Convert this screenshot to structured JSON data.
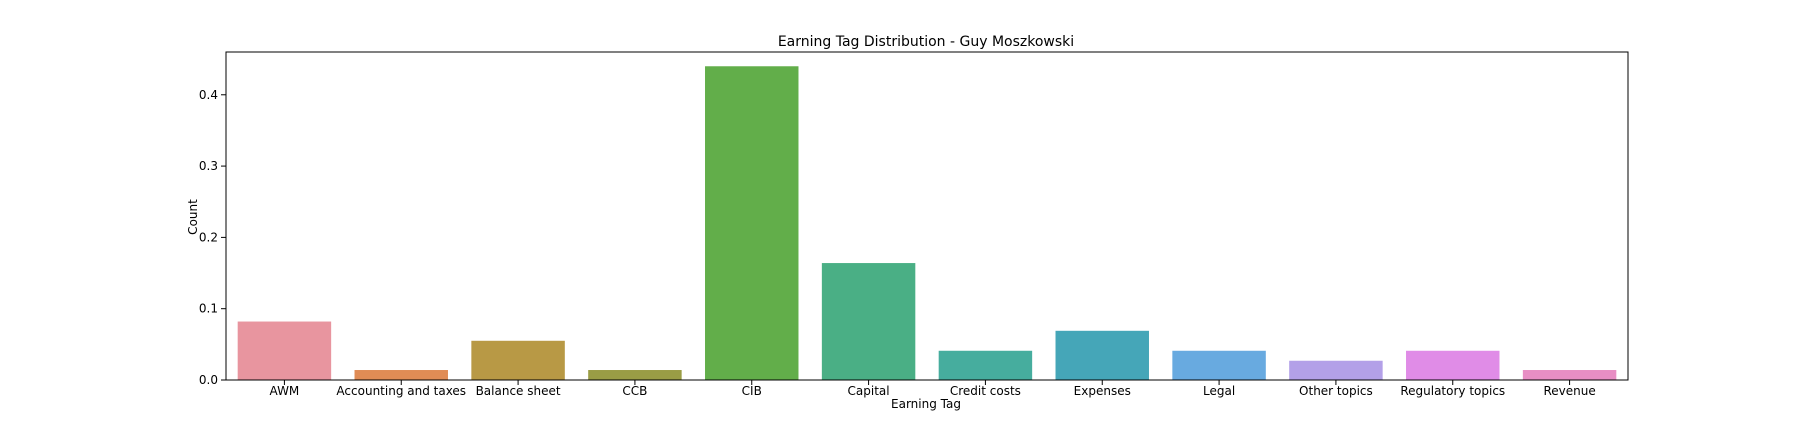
{
  "chart_data": {
    "type": "bar",
    "title": "Earning Tag Distribution - Guy Moszkowski",
    "xlabel": "Earning Tag",
    "ylabel": "Count",
    "ylim": [
      0,
      0.46
    ],
    "yticks": [
      0.0,
      0.1,
      0.2,
      0.3,
      0.4
    ],
    "ytick_labels": [
      "0.0",
      "0.1",
      "0.2",
      "0.3",
      "0.4"
    ],
    "grid": false,
    "categories": [
      "AWM",
      "Accounting and taxes",
      "Balance sheet",
      "CCB",
      "CIB",
      "Capital",
      "Credit costs",
      "Expenses",
      "Legal",
      "Other topics",
      "Regulatory topics",
      "Revenue"
    ],
    "values": [
      0.082,
      0.014,
      0.055,
      0.014,
      0.44,
      0.164,
      0.041,
      0.069,
      0.041,
      0.027,
      0.041,
      0.014
    ],
    "colors": [
      "#e8959f",
      "#e08c55",
      "#b89945",
      "#9a9d45",
      "#62ae4a",
      "#4aaf85",
      "#46ad9e",
      "#45a6b8",
      "#68aae0",
      "#b3a0e8",
      "#e08ce7",
      "#e88ec4"
    ]
  }
}
